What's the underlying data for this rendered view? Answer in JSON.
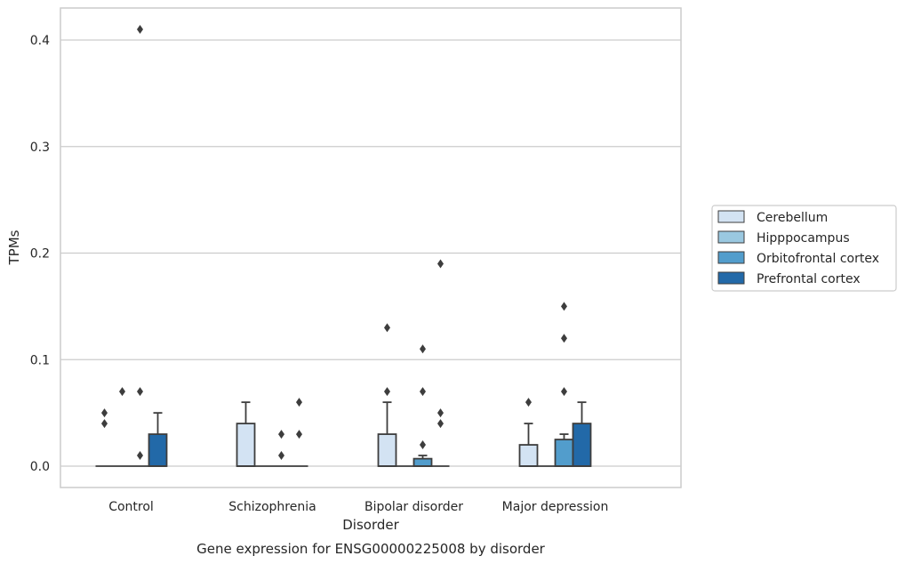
{
  "chart_data": {
    "type": "box",
    "title": "Gene expression for ENSG00000225008 by disorder",
    "xlabel": "Disorder",
    "ylabel": "TPMs",
    "ylim": [
      -0.02,
      0.43
    ],
    "yticks": [
      "0.0",
      "0.1",
      "0.2",
      "0.3",
      "0.4"
    ],
    "ytick_values": [
      0,
      0.1,
      0.2,
      0.3,
      0.4
    ],
    "grid": true,
    "legend_position": "right",
    "categories": [
      "Control",
      "Schizophrenia",
      "Bipolar disorder",
      "Major depression"
    ],
    "series": [
      {
        "name": "Cerebellum",
        "color": "#d3e3f3",
        "boxes": [
          {
            "q1": 0,
            "median": 0,
            "q3": 0,
            "whislo": 0,
            "whishi": 0,
            "fliers": [
              0.04,
              0.05
            ]
          },
          {
            "q1": 0,
            "median": 0,
            "q3": 0.04,
            "whislo": 0,
            "whishi": 0.06,
            "fliers": []
          },
          {
            "q1": 0,
            "median": 0,
            "q3": 0.03,
            "whislo": 0,
            "whishi": 0.06,
            "fliers": [
              0.07,
              0.13
            ]
          },
          {
            "q1": 0,
            "median": 0,
            "q3": 0.02,
            "whislo": 0,
            "whishi": 0.04,
            "fliers": [
              0.06
            ]
          }
        ]
      },
      {
        "name": "Hipppocampus",
        "color": "#9ac8e0",
        "boxes": [
          {
            "q1": 0,
            "median": 0,
            "q3": 0,
            "whislo": 0,
            "whishi": 0,
            "fliers": [
              0.07
            ]
          },
          {
            "q1": 0,
            "median": 0,
            "q3": 0,
            "whislo": 0,
            "whishi": 0,
            "fliers": []
          },
          {
            "q1": 0,
            "median": 0,
            "q3": 0,
            "whislo": 0,
            "whishi": 0,
            "fliers": []
          },
          {
            "q1": 0,
            "median": 0,
            "q3": 0,
            "whislo": 0,
            "whishi": 0,
            "fliers": []
          }
        ]
      },
      {
        "name": "Orbitofrontal cortex",
        "color": "#529dcc",
        "boxes": [
          {
            "q1": 0,
            "median": 0,
            "q3": 0,
            "whislo": 0,
            "whishi": 0,
            "fliers": [
              0.01,
              0.07,
              0.41
            ]
          },
          {
            "q1": 0,
            "median": 0,
            "q3": 0,
            "whislo": 0,
            "whishi": 0,
            "fliers": [
              0.01,
              0.03
            ]
          },
          {
            "q1": 0,
            "median": 0,
            "q3": 0.007,
            "whislo": 0,
            "whishi": 0.01,
            "fliers": [
              0.02,
              0.07,
              0.11
            ]
          },
          {
            "q1": 0,
            "median": 0,
            "q3": 0.025,
            "whislo": 0,
            "whishi": 0.03,
            "fliers": [
              0.07,
              0.12,
              0.15
            ]
          }
        ]
      },
      {
        "name": "Prefrontal cortex",
        "color": "#2269a8",
        "boxes": [
          {
            "q1": 0,
            "median": 0,
            "q3": 0.03,
            "whislo": 0,
            "whishi": 0.05,
            "fliers": []
          },
          {
            "q1": 0,
            "median": 0,
            "q3": 0,
            "whislo": 0,
            "whishi": 0,
            "fliers": [
              0.03,
              0.06
            ]
          },
          {
            "q1": 0,
            "median": 0,
            "q3": 0,
            "whislo": 0,
            "whishi": 0,
            "fliers": [
              0.04,
              0.05,
              0.19
            ]
          },
          {
            "q1": 0,
            "median": 0,
            "q3": 0.04,
            "whislo": 0,
            "whishi": 0.06,
            "fliers": []
          }
        ]
      }
    ]
  }
}
